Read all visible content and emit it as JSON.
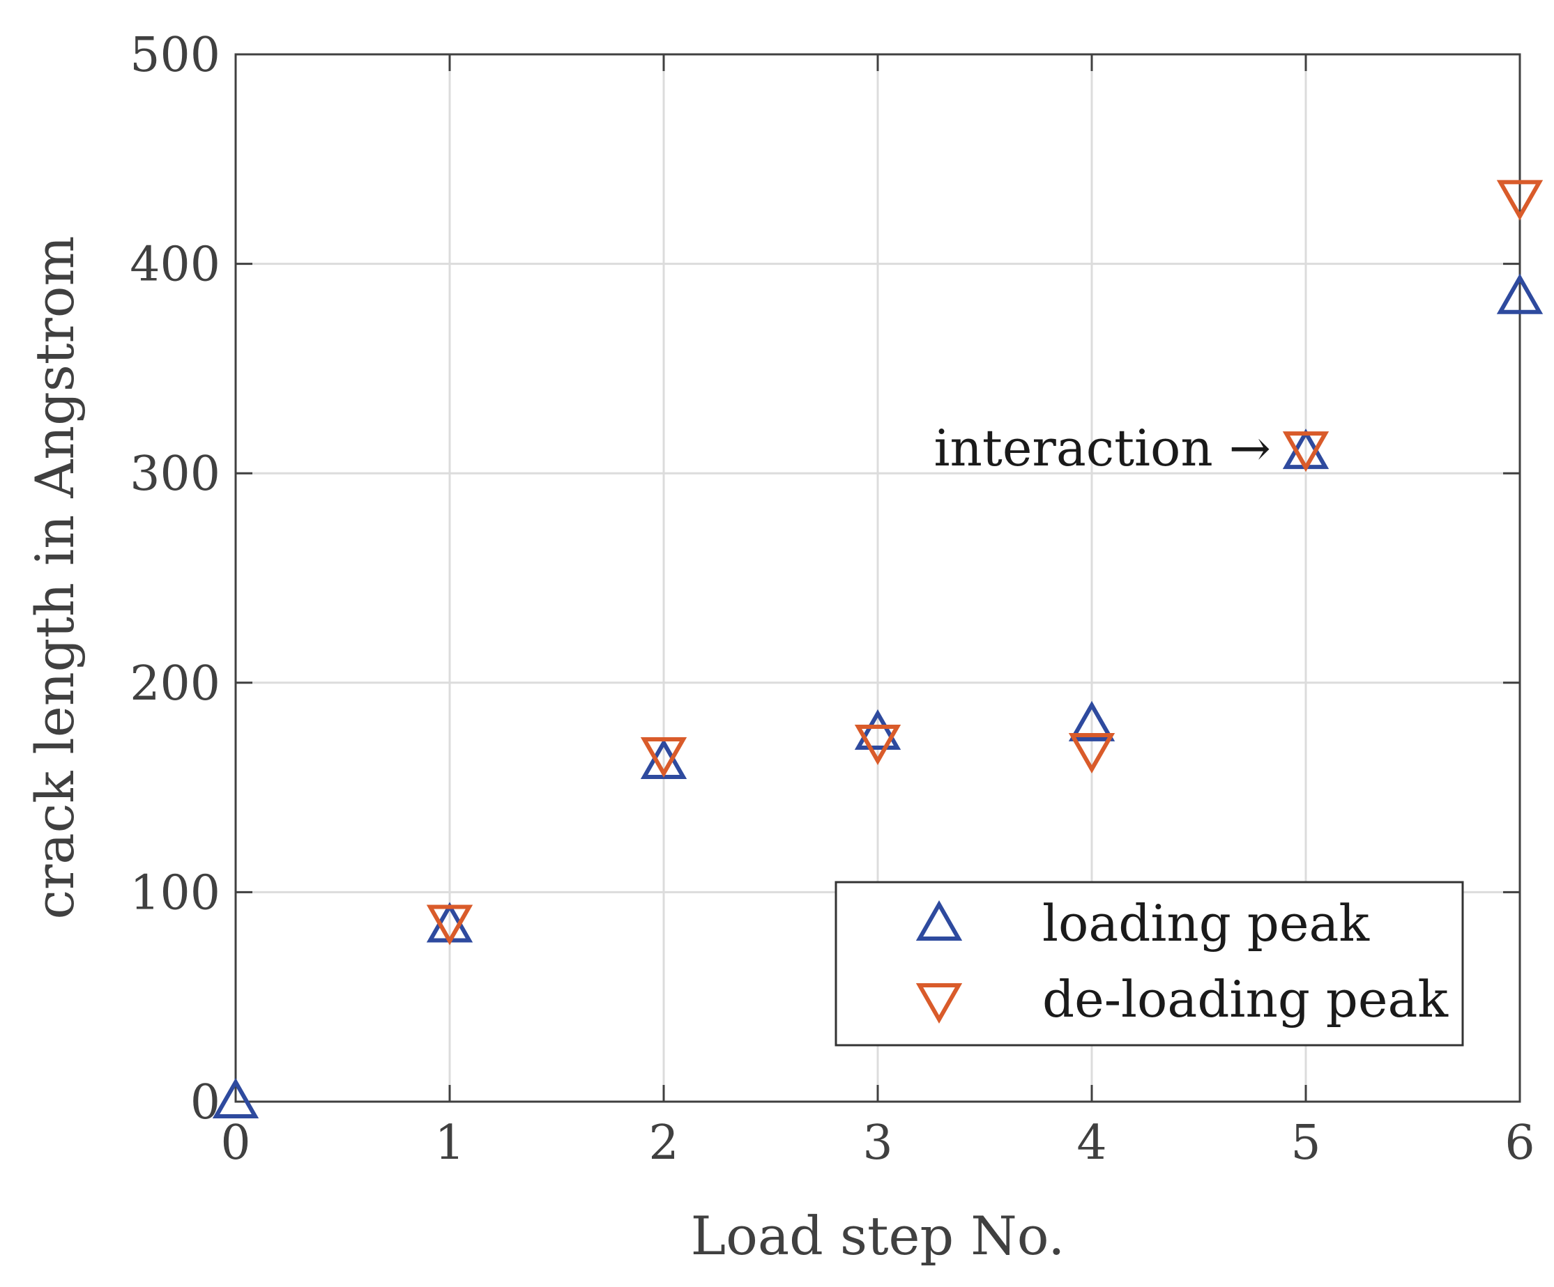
{
  "chart_data": {
    "type": "scatter",
    "title": "",
    "xlabel": "Load step No.",
    "ylabel": "crack length in Angstrom",
    "xlim": [
      0,
      6
    ],
    "ylim": [
      0,
      500
    ],
    "xticks": [
      "0",
      "1",
      "2",
      "3",
      "4",
      "5",
      "6"
    ],
    "yticks": [
      "0",
      "100",
      "200",
      "300",
      "400",
      "500"
    ],
    "grid": true,
    "legend_position": "bottom-right",
    "series": [
      {
        "name": "loading peak",
        "marker": "triangle-up",
        "color": "#2e4a9e",
        "x": [
          0,
          1,
          2,
          3,
          4,
          5,
          6
        ],
        "y": [
          0,
          84,
          162,
          176,
          180,
          310,
          384
        ]
      },
      {
        "name": "de-loading peak",
        "marker": "triangle-down",
        "color": "#d95b2a",
        "x": [
          1,
          2,
          3,
          4,
          5,
          6
        ],
        "y": [
          86,
          166,
          172,
          168,
          312,
          432
        ]
      }
    ],
    "annotations": [
      {
        "text": "interaction →",
        "x": 5,
        "y": 311
      }
    ]
  }
}
